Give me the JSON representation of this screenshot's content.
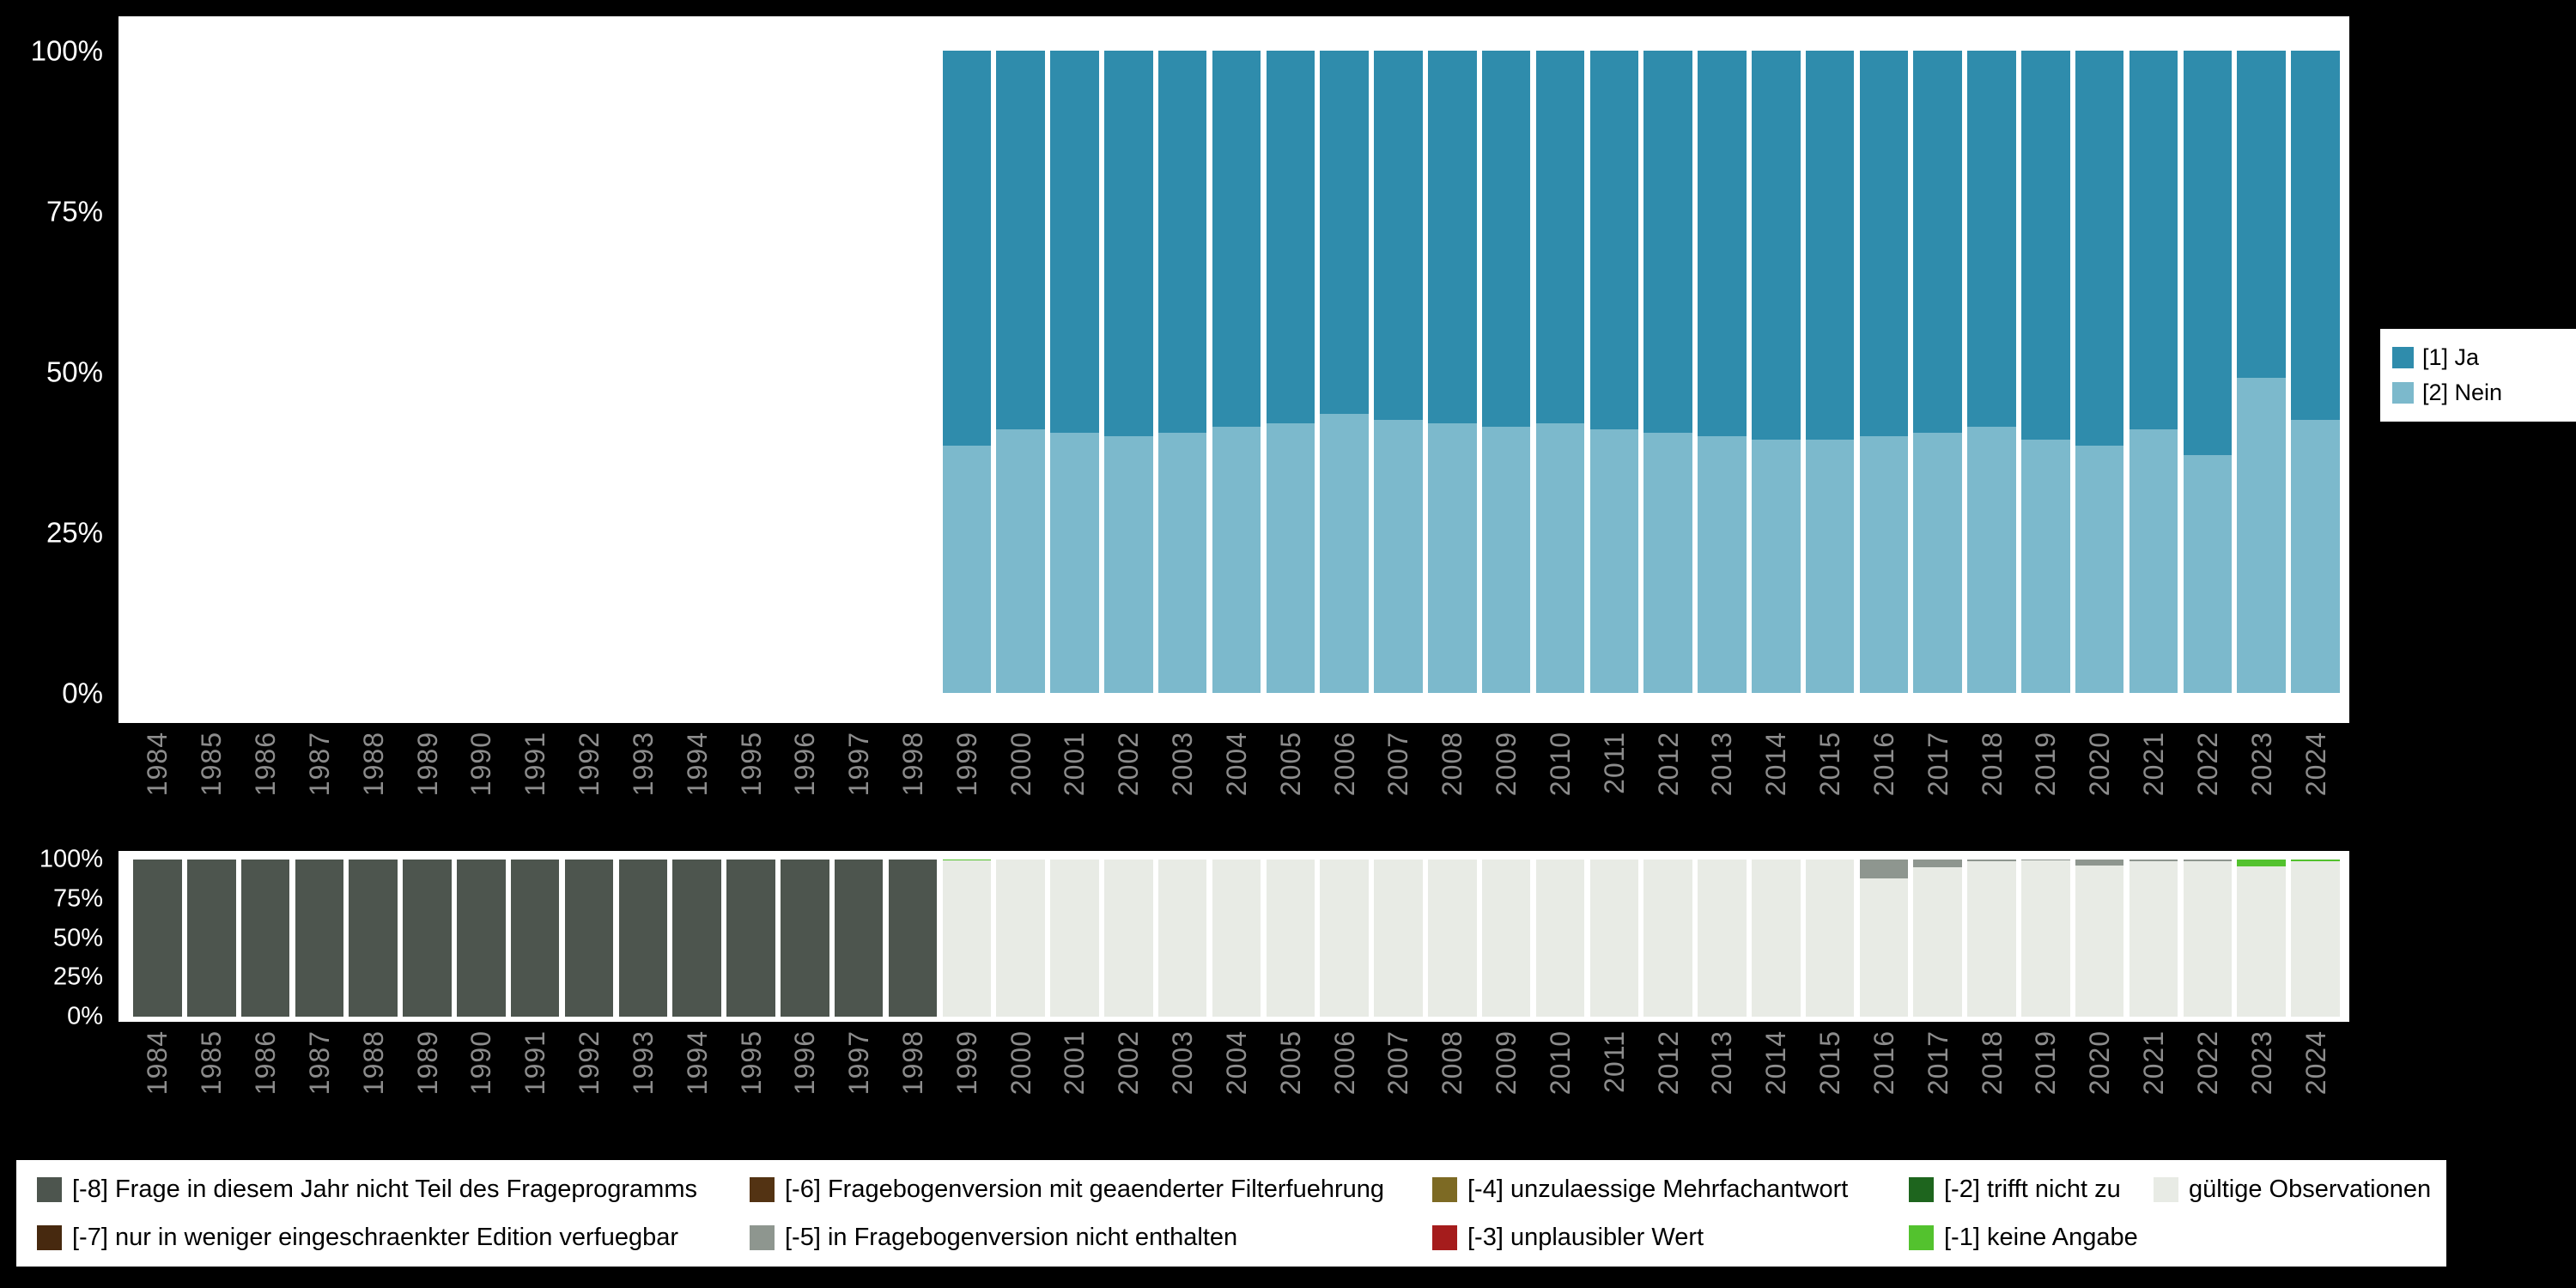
{
  "colors": {
    "page_background": "#000000",
    "panel_background": "#ffffff",
    "axis_tick_color": "#ffffff",
    "year_label_color": "#8c8c8c",
    "legend_background": "#ffffff",
    "legend_text_color": "#000000"
  },
  "chart_data": [
    {
      "id": "answers",
      "type": "bar",
      "stacked": true,
      "categories": [
        "1984",
        "1985",
        "1986",
        "1987",
        "1988",
        "1989",
        "1990",
        "1991",
        "1992",
        "1993",
        "1994",
        "1995",
        "1996",
        "1997",
        "1998",
        "1999",
        "2000",
        "2001",
        "2002",
        "2003",
        "2004",
        "2005",
        "2006",
        "2007",
        "2008",
        "2009",
        "2010",
        "2011",
        "2012",
        "2013",
        "2014",
        "2015",
        "2016",
        "2017",
        "2018",
        "2019",
        "2020",
        "2021",
        "2022",
        "2023",
        "2024"
      ],
      "yticks": [
        "0%",
        "25%",
        "50%",
        "75%",
        "100%"
      ],
      "ylim": [
        0,
        100
      ],
      "grid": false,
      "series": [
        {
          "name": "[2] Nein",
          "color": "#7cb9cc",
          "values": [
            null,
            null,
            null,
            null,
            null,
            null,
            null,
            null,
            null,
            null,
            null,
            null,
            null,
            null,
            null,
            38.5,
            41,
            40.5,
            40,
            40.5,
            41.5,
            42,
            43.5,
            42.5,
            42,
            41.5,
            42,
            41,
            40.5,
            40,
            39.5,
            39.5,
            40,
            40.5,
            41.5,
            39.5,
            38.5,
            41,
            37,
            49,
            42.5
          ]
        },
        {
          "name": "[1] Ja",
          "color": "#2f8cac",
          "values": [
            null,
            null,
            null,
            null,
            null,
            null,
            null,
            null,
            null,
            null,
            null,
            null,
            null,
            null,
            null,
            61.5,
            59,
            59.5,
            60,
            59.5,
            58.5,
            58,
            56.5,
            57.5,
            58,
            58.5,
            58,
            59,
            59.5,
            60,
            60.5,
            60.5,
            60,
            59.5,
            58.5,
            60.5,
            61.5,
            59,
            63,
            51,
            57.5
          ]
        }
      ],
      "legend": {
        "position": "right",
        "items": [
          {
            "label": "[1] Ja",
            "color": "#2f8cac"
          },
          {
            "label": "[2] Nein",
            "color": "#7cb9cc"
          }
        ]
      }
    },
    {
      "id": "missings",
      "type": "bar",
      "stacked": true,
      "categories": [
        "1984",
        "1985",
        "1986",
        "1987",
        "1988",
        "1989",
        "1990",
        "1991",
        "1992",
        "1993",
        "1994",
        "1995",
        "1996",
        "1997",
        "1998",
        "1999",
        "2000",
        "2001",
        "2002",
        "2003",
        "2004",
        "2005",
        "2006",
        "2007",
        "2008",
        "2009",
        "2010",
        "2011",
        "2012",
        "2013",
        "2014",
        "2015",
        "2016",
        "2017",
        "2018",
        "2019",
        "2020",
        "2021",
        "2022",
        "2023",
        "2024"
      ],
      "yticks": [
        "0%",
        "25%",
        "50%",
        "75%",
        "100%"
      ],
      "ylim": [
        0,
        100
      ],
      "grid": false,
      "series": [
        {
          "name": "gültige Observationen",
          "color": "#e8ebe5",
          "values": [
            0,
            0,
            0,
            0,
            0,
            0,
            0,
            0,
            0,
            0,
            0,
            0,
            0,
            0,
            0,
            99.5,
            100,
            100,
            100,
            100,
            100,
            100,
            100,
            100,
            100,
            100,
            100,
            100,
            100,
            100,
            100,
            100,
            88,
            95,
            99,
            99.5,
            96,
            99,
            99,
            95.5,
            99
          ]
        },
        {
          "name": "[-1] keine Angabe",
          "color": "#53c22e",
          "values": [
            0,
            0,
            0,
            0,
            0,
            0,
            0,
            0,
            0,
            0,
            0,
            0,
            0,
            0,
            0,
            0.5,
            0,
            0,
            0,
            0,
            0,
            0,
            0,
            0,
            0,
            0,
            0,
            0,
            0,
            0,
            0,
            0,
            0,
            0,
            0,
            0,
            0,
            0,
            0,
            4.5,
            1
          ]
        },
        {
          "name": "[-2] trifft nicht zu",
          "color": "#1e651e",
          "values": []
        },
        {
          "name": "[-3] unplausibler Wert",
          "color": "#a51c1c",
          "values": []
        },
        {
          "name": "[-4] unzulaessige Mehrfachantwort",
          "color": "#7d6a24",
          "values": []
        },
        {
          "name": "[-5] in Fragebogenversion nicht enthalten",
          "color": "#8e968f",
          "values": [
            0,
            0,
            0,
            0,
            0,
            0,
            0,
            0,
            0,
            0,
            0,
            0,
            0,
            0,
            0,
            0,
            0,
            0,
            0,
            0,
            0,
            0,
            0,
            0,
            0,
            0,
            0,
            0,
            0,
            0,
            0,
            0,
            12,
            5,
            1,
            0.5,
            4,
            1,
            1,
            0,
            0
          ]
        },
        {
          "name": "[-6] Fragebogenversion mit geaenderter Filterfuehrung",
          "color": "#533313",
          "values": []
        },
        {
          "name": "[-7] nur in weniger eingeschraenkter Edition verfuegbar",
          "color": "#47290f",
          "values": []
        },
        {
          "name": "[-8] Frage in diesem Jahr nicht Teil des Frageprogramms",
          "color": "#4d554e",
          "values": [
            100,
            100,
            100,
            100,
            100,
            100,
            100,
            100,
            100,
            100,
            100,
            100,
            100,
            100,
            100,
            0,
            0,
            0,
            0,
            0,
            0,
            0,
            0,
            0,
            0,
            0,
            0,
            0,
            0,
            0,
            0,
            0,
            0,
            0,
            0,
            0,
            0,
            0,
            0,
            0,
            0
          ]
        }
      ],
      "legend": {
        "position": "bottom",
        "items": [
          {
            "label": "[-8] Frage in diesem Jahr nicht Teil des Frageprogramms",
            "color": "#4d554e"
          },
          {
            "label": "[-7] nur in weniger eingeschraenkter Edition verfuegbar",
            "color": "#47290f"
          },
          {
            "label": "[-6] Fragebogenversion mit geaenderter Filterfuehrung",
            "color": "#533313"
          },
          {
            "label": "[-5] in Fragebogenversion nicht enthalten",
            "color": "#8e968f"
          },
          {
            "label": "[-4] unzulaessige Mehrfachantwort",
            "color": "#7d6a24"
          },
          {
            "label": "[-3] unplausibler Wert",
            "color": "#a51c1c"
          },
          {
            "label": "[-2] trifft nicht zu",
            "color": "#1e651e"
          },
          {
            "label": "[-1] keine Angabe",
            "color": "#53c22e"
          },
          {
            "label": "gültige Observationen",
            "color": "#e8ebe5"
          }
        ]
      }
    }
  ]
}
